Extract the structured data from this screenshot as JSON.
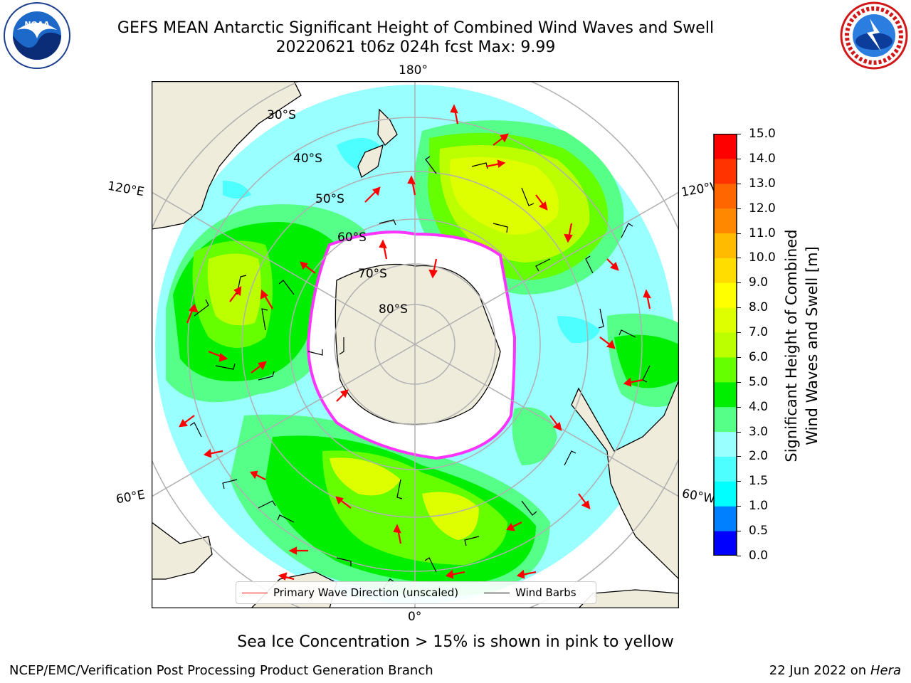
{
  "header": {
    "title_line1": "GEFS MEAN Antarctic Significant Height of Combined Wind Waves and Swell",
    "title_line2": "20220621 t06z 024h fcst   Max: 9.99"
  },
  "logos": {
    "left": "noaa-logo",
    "right": "national-weather-service-logo"
  },
  "map": {
    "projection": "south-polar-stereographic",
    "center": "South Pole",
    "longitude_labels": [
      {
        "text": "180°"
      },
      {
        "text": "120°E"
      },
      {
        "text": "120°W"
      },
      {
        "text": "60°E"
      },
      {
        "text": "60°W"
      },
      {
        "text": "0°"
      }
    ],
    "latitude_labels": [
      {
        "text": "30°S"
      },
      {
        "text": "40°S"
      },
      {
        "text": "50°S"
      },
      {
        "text": "60°S"
      },
      {
        "text": "70°S"
      },
      {
        "text": "80°S"
      }
    ],
    "colors": {
      "land": "#efecdc",
      "ice_free_ocean_low": "#99ffff",
      "sea_ice_edge": "#ff33ff",
      "wave_arrow": "#ff0000",
      "wind_barb": "#000000"
    }
  },
  "colorbar": {
    "label_line1": "Significant Height of Combined",
    "label_line2": "Wind Waves and Swell [m]",
    "ticks": [
      "15.0",
      "14.0",
      "13.0",
      "12.0",
      "11.0",
      "10.0",
      "9.0",
      "8.0",
      "7.0",
      "6.0",
      "5.0",
      "4.0",
      "3.0",
      "2.0",
      "1.5",
      "1.0",
      "0.5",
      "0.0"
    ],
    "bands": [
      {
        "range": "0.0-0.5",
        "color": "#0000ff"
      },
      {
        "range": "0.5-1.0",
        "color": "#0080ff"
      },
      {
        "range": "1.0-1.5",
        "color": "#00ffff"
      },
      {
        "range": "1.5-2.0",
        "color": "#4dffff"
      },
      {
        "range": "2.0-3.0",
        "color": "#99ffff"
      },
      {
        "range": "3.0-4.0",
        "color": "#55ff88"
      },
      {
        "range": "4.0-5.0",
        "color": "#00ee00"
      },
      {
        "range": "5.0-6.0",
        "color": "#66ff00"
      },
      {
        "range": "6.0-7.0",
        "color": "#bbff00"
      },
      {
        "range": "7.0-8.0",
        "color": "#ddff00"
      },
      {
        "range": "8.0-9.0",
        "color": "#ffff00"
      },
      {
        "range": "9.0-10.0",
        "color": "#ffdd00"
      },
      {
        "range": "10.0-11.0",
        "color": "#ffbb00"
      },
      {
        "range": "11.0-12.0",
        "color": "#ff8800"
      },
      {
        "range": "12.0-13.0",
        "color": "#ff6600"
      },
      {
        "range": "13.0-14.0",
        "color": "#ff3300"
      },
      {
        "range": "14.0-15.0",
        "color": "#ff0000"
      }
    ]
  },
  "legend": {
    "wave_label": "Primary Wave Direction (unscaled)",
    "wind_label": "Wind Barbs"
  },
  "note": "Sea Ice Concentration > 15% is shown in pink to yellow",
  "footer": {
    "left": "NCEP/EMC/Verification Post Processing Product Generation Branch",
    "date": "22 Jun 2022 on",
    "machine": "Hera"
  }
}
